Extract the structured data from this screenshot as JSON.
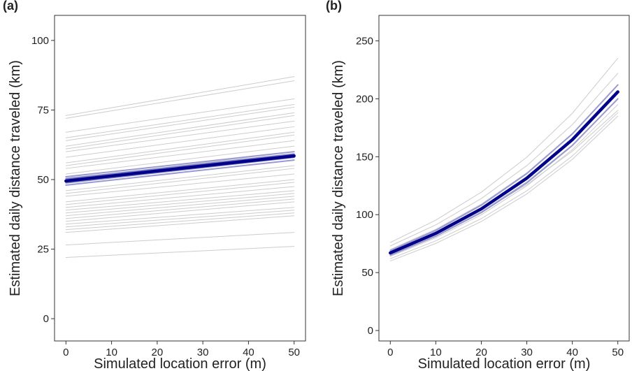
{
  "chart_data": [
    {
      "type": "line",
      "title": "(a)",
      "xlabel": "Simulated location error (m)",
      "ylabel": "Estimated daily distance traveled (km)",
      "x": [
        0,
        50
      ],
      "xlim": [
        -2.5,
        52.5
      ],
      "ylim": [
        -8,
        109
      ],
      "xticks": [
        0,
        10,
        20,
        30,
        40,
        50
      ],
      "yticks": [
        0,
        25,
        50,
        75,
        100
      ],
      "series": [
        {
          "color": "#cccccc",
          "linewidth": 1,
          "values": [
            22,
            26
          ]
        },
        {
          "color": "#cccccc",
          "linewidth": 1,
          "values": [
            26.5,
            31
          ]
        },
        {
          "color": "#cccccc",
          "linewidth": 1,
          "values": [
            31,
            37
          ]
        },
        {
          "color": "#cccccc",
          "linewidth": 1,
          "values": [
            32,
            38
          ]
        },
        {
          "color": "#cccccc",
          "linewidth": 1,
          "values": [
            33,
            39
          ]
        },
        {
          "color": "#cccccc",
          "linewidth": 1,
          "values": [
            34,
            40
          ]
        },
        {
          "color": "#cccccc",
          "linewidth": 1,
          "values": [
            35,
            42
          ]
        },
        {
          "color": "#cccccc",
          "linewidth": 1,
          "values": [
            36,
            43
          ]
        },
        {
          "color": "#cccccc",
          "linewidth": 1,
          "values": [
            37,
            44
          ]
        },
        {
          "color": "#cccccc",
          "linewidth": 1,
          "values": [
            38,
            45
          ]
        },
        {
          "color": "#cccccc",
          "linewidth": 1,
          "values": [
            39,
            46
          ]
        },
        {
          "color": "#cccccc",
          "linewidth": 1,
          "values": [
            40,
            47.5
          ]
        },
        {
          "color": "#cccccc",
          "linewidth": 1,
          "values": [
            41,
            49
          ]
        },
        {
          "color": "#cccccc",
          "linewidth": 1,
          "values": [
            42,
            50
          ]
        },
        {
          "color": "#cccccc",
          "linewidth": 1,
          "values": [
            44,
            52
          ]
        },
        {
          "color": "#cccccc",
          "linewidth": 1,
          "values": [
            45,
            54
          ]
        },
        {
          "color": "#cccccc",
          "linewidth": 1,
          "values": [
            46,
            55
          ]
        },
        {
          "color": "#cccccc",
          "linewidth": 1,
          "values": [
            48,
            57
          ]
        },
        {
          "color": "#cccccc",
          "linewidth": 1,
          "values": [
            50,
            60
          ]
        },
        {
          "color": "#cccccc",
          "linewidth": 1,
          "values": [
            52,
            62
          ]
        },
        {
          "color": "#cccccc",
          "linewidth": 1,
          "values": [
            54,
            64
          ]
        },
        {
          "color": "#cccccc",
          "linewidth": 1,
          "values": [
            55,
            66
          ]
        },
        {
          "color": "#cccccc",
          "linewidth": 1,
          "values": [
            56,
            67
          ]
        },
        {
          "color": "#cccccc",
          "linewidth": 1,
          "values": [
            58,
            69
          ]
        },
        {
          "color": "#cccccc",
          "linewidth": 1,
          "values": [
            60,
            71
          ]
        },
        {
          "color": "#cccccc",
          "linewidth": 1,
          "values": [
            61,
            73
          ]
        },
        {
          "color": "#cccccc",
          "linewidth": 1,
          "values": [
            62,
            74
          ]
        },
        {
          "color": "#cccccc",
          "linewidth": 1,
          "values": [
            64,
            76
          ]
        },
        {
          "color": "#cccccc",
          "linewidth": 1,
          "values": [
            65,
            77
          ]
        },
        {
          "color": "#cccccc",
          "linewidth": 1,
          "values": [
            67,
            79
          ]
        },
        {
          "color": "#cccccc",
          "linewidth": 1,
          "values": [
            72,
            85.5
          ]
        },
        {
          "color": "#cccccc",
          "linewidth": 1,
          "values": [
            73,
            87
          ]
        },
        {
          "color": "#9a9ad0",
          "linewidth": 2,
          "values": [
            48,
            57
          ]
        },
        {
          "color": "#9a9ad0",
          "linewidth": 2,
          "values": [
            51,
            60
          ]
        },
        {
          "color": "#7f7fc4",
          "linewidth": 2,
          "values": [
            48.8,
            58
          ]
        },
        {
          "color": "#7f7fc4",
          "linewidth": 2,
          "values": [
            50.3,
            59.2
          ]
        },
        {
          "color": "#00008b",
          "linewidth": 4.5,
          "values": [
            49.5,
            58.5
          ]
        }
      ]
    },
    {
      "type": "line",
      "title": "(b)",
      "xlabel": "Simulated location error (m)",
      "ylabel": "Estimated daily distance traveled (km)",
      "x": [
        0,
        10,
        20,
        30,
        40,
        50
      ],
      "xlim": [
        -2.5,
        52.5
      ],
      "ylim": [
        -9,
        272
      ],
      "xticks": [
        0,
        10,
        20,
        30,
        40,
        50
      ],
      "yticks": [
        0,
        50,
        100,
        150,
        200,
        250
      ],
      "series": [
        {
          "color": "#cccccc",
          "linewidth": 1,
          "values": [
            60,
            75.2,
            94.1,
            117.9,
            147.7,
            185
          ]
        },
        {
          "color": "#cccccc",
          "linewidth": 1,
          "values": [
            62,
            77.4,
            96.6,
            120.6,
            150.6,
            188
          ]
        },
        {
          "color": "#cccccc",
          "linewidth": 1,
          "values": [
            64,
            80,
            99.9,
            124.9,
            156.1,
            195
          ]
        },
        {
          "color": "#cccccc",
          "linewidth": 1,
          "values": [
            66,
            82.4,
            102.8,
            128.4,
            160.2,
            200
          ]
        },
        {
          "color": "#cccccc",
          "linewidth": 1,
          "values": [
            68,
            83.5,
            102.6,
            126,
            154.7,
            190
          ]
        },
        {
          "color": "#cccccc",
          "linewidth": 1,
          "values": [
            70,
            87.4,
            109.1,
            136.1,
            169.9,
            212
          ]
        },
        {
          "color": "#cccccc",
          "linewidth": 1,
          "values": [
            73,
            91.2,
            113.9,
            142.3,
            177.7,
            222
          ]
        },
        {
          "color": "#cccccc",
          "linewidth": 1,
          "values": [
            76,
            95.3,
            119.4,
            149.6,
            187.5,
            235
          ]
        },
        {
          "color": "#9a9ad0",
          "linewidth": 2,
          "values": [
            65,
            81.4,
            101.8,
            127.5,
            159.7,
            200
          ]
        },
        {
          "color": "#9a9ad0",
          "linewidth": 2,
          "values": [
            69,
            86.4,
            108.2,
            135.5,
            169.7,
            212
          ]
        },
        {
          "color": "#00008b",
          "linewidth": 4.5,
          "values": [
            67,
            83.9,
            105,
            131.5,
            164.7,
            206
          ]
        }
      ]
    }
  ]
}
